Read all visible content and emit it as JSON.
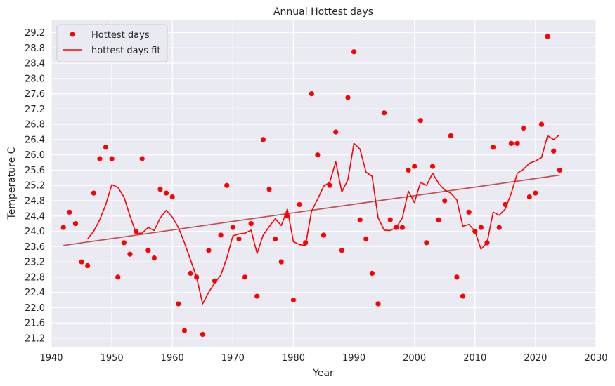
{
  "chart_data": {
    "type": "scatter",
    "title": "Annual Hottest days",
    "xlabel": "Year",
    "ylabel": "Temperature C",
    "xlim": [
      1940,
      2030
    ],
    "ylim": [
      20.96,
      29.54
    ],
    "xticks": [
      1940,
      1950,
      1960,
      1970,
      1980,
      1990,
      2000,
      2010,
      2020,
      2030
    ],
    "xtick_labels": [
      "1940",
      "1950",
      "1960",
      "1970",
      "1980",
      "1990",
      "2000",
      "2010",
      "2020",
      "2030"
    ],
    "yticks": [
      21.2,
      21.6,
      22.0,
      22.4,
      22.8,
      23.2,
      23.6,
      24.0,
      24.4,
      24.8,
      25.2,
      25.6,
      26.0,
      26.4,
      26.8,
      27.2,
      27.6,
      28.0,
      28.4,
      28.8,
      29.2
    ],
    "ytick_labels": [
      "21.2",
      "21.6",
      "22.0",
      "22.4",
      "22.8",
      "23.2",
      "23.6",
      "24.0",
      "24.4",
      "24.8",
      "25.2",
      "25.6",
      "26.0",
      "26.4",
      "26.8",
      "27.2",
      "27.6",
      "28.0",
      "28.4",
      "28.8",
      "29.2"
    ],
    "grid": true,
    "legend_position": "top-left",
    "series": [
      {
        "name": "Hottest days",
        "kind": "scatter",
        "color": "#ff0000",
        "x": [
          1942,
          1943,
          1944,
          1945,
          1946,
          1947,
          1948,
          1949,
          1950,
          1951,
          1952,
          1953,
          1954,
          1955,
          1956,
          1957,
          1958,
          1959,
          1960,
          1961,
          1962,
          1963,
          1964,
          1965,
          1966,
          1967,
          1968,
          1969,
          1970,
          1971,
          1972,
          1973,
          1974,
          1975,
          1976,
          1977,
          1978,
          1979,
          1980,
          1981,
          1982,
          1983,
          1984,
          1985,
          1986,
          1987,
          1988,
          1989,
          1990,
          1991,
          1992,
          1993,
          1994,
          1995,
          1996,
          1997,
          1998,
          1999,
          2000,
          2001,
          2002,
          2003,
          2004,
          2005,
          2006,
          2007,
          2008,
          2009,
          2010,
          2011,
          2012,
          2013,
          2014,
          2015,
          2016,
          2017,
          2018,
          2019,
          2020,
          2021,
          2022,
          2023,
          2024
        ],
        "y": [
          24.1,
          24.5,
          24.2,
          23.2,
          23.1,
          25.0,
          25.9,
          26.2,
          25.9,
          22.8,
          23.7,
          23.4,
          24.0,
          25.9,
          23.5,
          23.3,
          25.1,
          25.0,
          24.9,
          22.1,
          21.4,
          22.9,
          22.8,
          21.3,
          23.5,
          22.7,
          23.9,
          25.2,
          24.1,
          23.8,
          22.8,
          24.2,
          22.3,
          26.4,
          25.1,
          23.8,
          23.2,
          24.4,
          22.2,
          24.7,
          23.7,
          27.6,
          26.0,
          23.9,
          25.2,
          26.6,
          23.5,
          27.5,
          28.7,
          24.3,
          23.8,
          22.9,
          22.1,
          27.1,
          24.3,
          24.1,
          24.1,
          25.6,
          25.7,
          26.9,
          23.7,
          25.7,
          24.3,
          24.8,
          26.5,
          22.8,
          22.3,
          24.5,
          24.0,
          24.1,
          23.7,
          26.2,
          24.1,
          24.7,
          26.3,
          26.3,
          26.7,
          24.9,
          25.0,
          26.8,
          29.1,
          26.1,
          25.6
        ]
      },
      {
        "name": "hottest days fit",
        "kind": "line",
        "color": "#ff0000",
        "x": [
          1946,
          1947,
          1948,
          1949,
          1950,
          1951,
          1952,
          1953,
          1954,
          1955,
          1956,
          1957,
          1958,
          1959,
          1960,
          1961,
          1962,
          1963,
          1964,
          1965,
          1966,
          1967,
          1968,
          1969,
          1970,
          1971,
          1972,
          1973,
          1974,
          1975,
          1976,
          1977,
          1978,
          1979,
          1980,
          1981,
          1982,
          1983,
          1984,
          1985,
          1986,
          1987,
          1988,
          1989,
          1990,
          1991,
          1992,
          1993,
          1994,
          1995,
          1996,
          1997,
          1998,
          1999,
          2000,
          2001,
          2002,
          2003,
          2004,
          2005,
          2006,
          2007,
          2008,
          2009,
          2010,
          2011,
          2012,
          2013,
          2014,
          2015,
          2016,
          2017,
          2018,
          2019,
          2020,
          2021,
          2022,
          2023,
          2024
        ],
        "y": [
          23.8,
          24.0,
          24.3,
          24.7,
          25.22,
          25.15,
          24.9,
          24.4,
          23.95,
          23.95,
          24.1,
          24.02,
          24.35,
          24.55,
          24.37,
          24.1,
          23.7,
          23.25,
          22.8,
          22.1,
          22.4,
          22.65,
          22.85,
          23.3,
          23.88,
          23.93,
          23.95,
          24.03,
          23.42,
          23.9,
          24.12,
          24.33,
          24.15,
          24.58,
          23.73,
          23.65,
          23.63,
          24.53,
          24.84,
          25.18,
          25.28,
          25.82,
          25.03,
          25.35,
          26.3,
          26.15,
          25.55,
          25.44,
          24.35,
          24.03,
          24.02,
          24.1,
          24.35,
          25.05,
          24.75,
          25.28,
          25.2,
          25.52,
          25.25,
          25.08,
          25.0,
          24.82,
          24.13,
          24.18,
          24.0,
          23.53,
          23.7,
          24.5,
          24.42,
          24.58,
          25.0,
          25.52,
          25.62,
          25.78,
          25.84,
          25.93,
          26.5,
          26.4,
          26.53
        ]
      },
      {
        "kind": "line",
        "color": "#c44e52",
        "x": [
          1942,
          2024
        ],
        "y": [
          23.63,
          25.47
        ]
      }
    ]
  }
}
